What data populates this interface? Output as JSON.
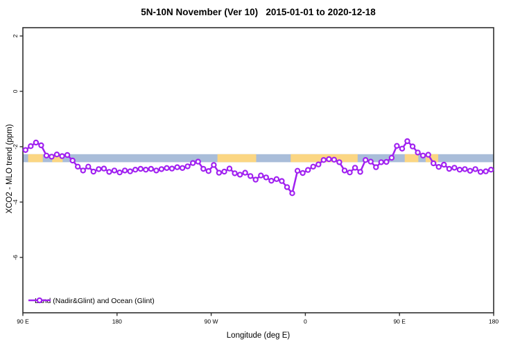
{
  "chart_data": {
    "type": "line",
    "title": "5N-10N November (Ver 10)   2015-01-01 to 2020-12-18",
    "xlabel": "Longitude (deg E)",
    "ylabel": "XCO2 - MLO trend (ppm)",
    "xlim": [
      90,
      540
    ],
    "ylim": [
      -8.0,
      2.3
    ],
    "grid": false,
    "x_ticks": [
      {
        "pos": 90,
        "label": "90 E"
      },
      {
        "pos": 180,
        "label": "180"
      },
      {
        "pos": 270,
        "label": "90 W"
      },
      {
        "pos": 360,
        "label": "0"
      },
      {
        "pos": 450,
        "label": "90 E"
      },
      {
        "pos": 540,
        "label": "180"
      }
    ],
    "y_ticks": [
      {
        "pos": 2,
        "label": "2"
      },
      {
        "pos": 0,
        "label": "0"
      },
      {
        "pos": -2,
        "label": "-2"
      },
      {
        "pos": -4,
        "label": "-4"
      },
      {
        "pos": -6,
        "label": "-6"
      }
    ],
    "colors": {
      "series": "#a020f0",
      "marker_fill": "#ffffff",
      "frame": "#2e2e2e",
      "band_ocean": "#a9bdd9",
      "band_land": "#fbd683"
    },
    "map_band": {
      "note": "latitude-strip map drawn across plot: ocean blue with land patches",
      "value_range": [
        -2.27,
        -2.56
      ],
      "land_patches_lon": [
        [
          95,
          109
        ],
        [
          118,
          128
        ],
        [
          276,
          313
        ],
        [
          346,
          410
        ],
        [
          455,
          468
        ],
        [
          475,
          487
        ]
      ]
    },
    "legend": [
      {
        "label": "Land (Nadir&Glint) and Ocean (Glint)",
        "color": "#a020f0",
        "marker": "open-circle"
      }
    ],
    "series": [
      {
        "name": "Land (Nadir&Glint) and Ocean (Glint)",
        "x": [
          92.5,
          97.5,
          102.5,
          107.5,
          112.5,
          117.5,
          122.5,
          127.5,
          132.5,
          137.5,
          142.5,
          147.5,
          152.5,
          157.5,
          162.5,
          167.5,
          172.5,
          177.5,
          182.5,
          187.5,
          192.5,
          197.5,
          202.5,
          207.5,
          212.5,
          217.5,
          222.5,
          227.5,
          232.5,
          237.5,
          242.5,
          247.5,
          252.5,
          257.5,
          262.5,
          267.5,
          272.5,
          277.5,
          282.5,
          287.5,
          292.5,
          297.5,
          302.5,
          307.5,
          312.5,
          317.5,
          322.5,
          327.5,
          332.5,
          337.5,
          342.5,
          347.5,
          352.5,
          357.5,
          362.5,
          367.5,
          372.5,
          377.5,
          382.5,
          387.5,
          392.5,
          397.5,
          402.5,
          407.5,
          412.5,
          417.5,
          422.5,
          427.5,
          432.5,
          437.5,
          442.5,
          447.5,
          452.5,
          457.5,
          462.5,
          467.5,
          472.5,
          477.5,
          482.5,
          487.5,
          492.5,
          497.5,
          502.5,
          507.5,
          512.5,
          517.5,
          522.5,
          527.5,
          532.5,
          537.5
        ],
        "y": [
          -2.12,
          -1.98,
          -1.85,
          -1.95,
          -2.32,
          -2.36,
          -2.28,
          -2.34,
          -2.3,
          -2.5,
          -2.72,
          -2.86,
          -2.72,
          -2.9,
          -2.81,
          -2.79,
          -2.91,
          -2.86,
          -2.93,
          -2.86,
          -2.89,
          -2.83,
          -2.8,
          -2.83,
          -2.8,
          -2.86,
          -2.81,
          -2.77,
          -2.79,
          -2.74,
          -2.77,
          -2.71,
          -2.59,
          -2.54,
          -2.8,
          -2.88,
          -2.66,
          -2.94,
          -2.9,
          -2.79,
          -2.96,
          -3.01,
          -2.94,
          -3.06,
          -3.19,
          -3.04,
          -3.11,
          -3.23,
          -3.17,
          -3.24,
          -3.46,
          -3.68,
          -2.87,
          -2.95,
          -2.84,
          -2.72,
          -2.64,
          -2.48,
          -2.45,
          -2.47,
          -2.56,
          -2.86,
          -2.93,
          -2.76,
          -2.91,
          -2.48,
          -2.54,
          -2.74,
          -2.56,
          -2.55,
          -2.4,
          -1.97,
          -2.07,
          -1.8,
          -1.99,
          -2.21,
          -2.32,
          -2.29,
          -2.6,
          -2.73,
          -2.65,
          -2.8,
          -2.76,
          -2.83,
          -2.81,
          -2.87,
          -2.81,
          -2.91,
          -2.89,
          -2.83
        ]
      }
    ]
  }
}
